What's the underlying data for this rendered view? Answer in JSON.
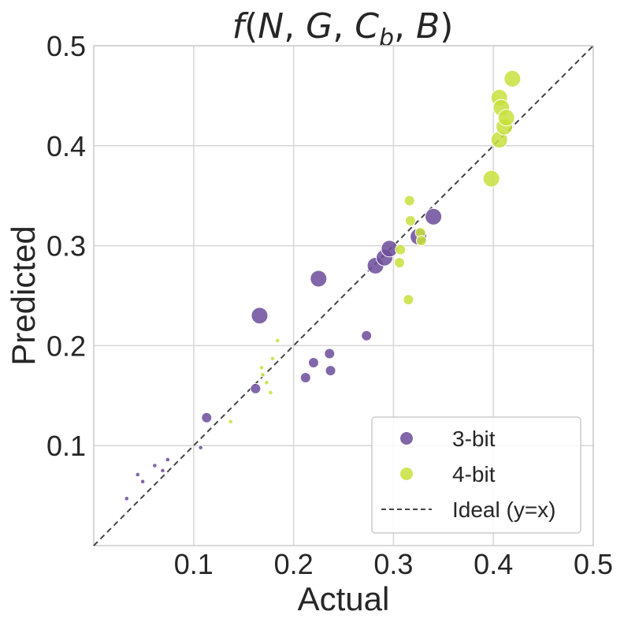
{
  "chart_data": {
    "type": "scatter",
    "title": "f(N, G, C_b, B)",
    "title_parts": {
      "f": "f",
      "open": "(",
      "N": "N",
      "sep1": ", ",
      "G": "G",
      "sep2": ", ",
      "C": "C",
      "sub": "b",
      "sep3": ", ",
      "B": "B",
      "close": ")"
    },
    "xlabel": "Actual",
    "ylabel": "Predicted",
    "xlim": [
      0,
      0.5
    ],
    "ylim": [
      0,
      0.5
    ],
    "xticks": [
      "0.1",
      "0.2",
      "0.3",
      "0.4",
      "0.5"
    ],
    "yticks": [
      "0.1",
      "0.2",
      "0.3",
      "0.4",
      "0.5"
    ],
    "grid": true,
    "ideal_line": {
      "label": "Ideal (y=x)",
      "style": "dashed",
      "color": "#444444"
    },
    "legend_position": "bottom-right",
    "series": [
      {
        "name": "3-bit",
        "color": "#6b4c9a",
        "points": [
          {
            "x": 0.033,
            "y": 0.047,
            "size": 1
          },
          {
            "x": 0.044,
            "y": 0.071,
            "size": 1
          },
          {
            "x": 0.049,
            "y": 0.064,
            "size": 1
          },
          {
            "x": 0.061,
            "y": 0.08,
            "size": 1
          },
          {
            "x": 0.069,
            "y": 0.075,
            "size": 1
          },
          {
            "x": 0.074,
            "y": 0.086,
            "size": 1
          },
          {
            "x": 0.107,
            "y": 0.098,
            "size": 1
          },
          {
            "x": 0.113,
            "y": 0.128,
            "size": 3
          },
          {
            "x": 0.162,
            "y": 0.157,
            "size": 3
          },
          {
            "x": 0.166,
            "y": 0.23,
            "size": 5
          },
          {
            "x": 0.212,
            "y": 0.168,
            "size": 3
          },
          {
            "x": 0.22,
            "y": 0.183,
            "size": 3
          },
          {
            "x": 0.225,
            "y": 0.267,
            "size": 5
          },
          {
            "x": 0.236,
            "y": 0.192,
            "size": 3
          },
          {
            "x": 0.237,
            "y": 0.175,
            "size": 3
          },
          {
            "x": 0.273,
            "y": 0.21,
            "size": 3
          },
          {
            "x": 0.282,
            "y": 0.28,
            "size": 5
          },
          {
            "x": 0.291,
            "y": 0.288,
            "size": 5
          },
          {
            "x": 0.296,
            "y": 0.297,
            "size": 5
          },
          {
            "x": 0.325,
            "y": 0.309,
            "size": 5
          },
          {
            "x": 0.34,
            "y": 0.329,
            "size": 5
          }
        ]
      },
      {
        "name": "4-bit",
        "color": "#c8e03c",
        "points": [
          {
            "x": 0.137,
            "y": 0.124,
            "size": 1
          },
          {
            "x": 0.168,
            "y": 0.178,
            "size": 1
          },
          {
            "x": 0.169,
            "y": 0.171,
            "size": 1
          },
          {
            "x": 0.173,
            "y": 0.163,
            "size": 1
          },
          {
            "x": 0.177,
            "y": 0.153,
            "size": 1
          },
          {
            "x": 0.179,
            "y": 0.187,
            "size": 1
          },
          {
            "x": 0.184,
            "y": 0.205,
            "size": 1
          },
          {
            "x": 0.306,
            "y": 0.283,
            "size": 3
          },
          {
            "x": 0.307,
            "y": 0.296,
            "size": 3
          },
          {
            "x": 0.315,
            "y": 0.246,
            "size": 3
          },
          {
            "x": 0.316,
            "y": 0.345,
            "size": 3
          },
          {
            "x": 0.317,
            "y": 0.325,
            "size": 3
          },
          {
            "x": 0.327,
            "y": 0.313,
            "size": 3
          },
          {
            "x": 0.328,
            "y": 0.305,
            "size": 3
          },
          {
            "x": 0.398,
            "y": 0.367,
            "size": 5
          },
          {
            "x": 0.406,
            "y": 0.406,
            "size": 5
          },
          {
            "x": 0.406,
            "y": 0.448,
            "size": 5
          },
          {
            "x": 0.408,
            "y": 0.438,
            "size": 5
          },
          {
            "x": 0.411,
            "y": 0.419,
            "size": 5
          },
          {
            "x": 0.413,
            "y": 0.428,
            "size": 5
          },
          {
            "x": 0.419,
            "y": 0.467,
            "size": 5
          }
        ]
      }
    ]
  }
}
